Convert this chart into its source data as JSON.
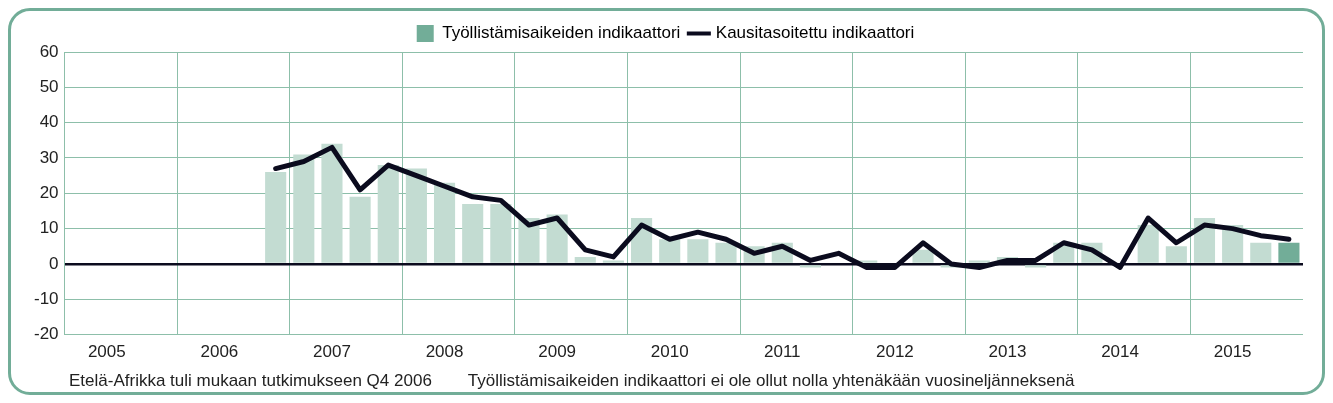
{
  "chart_data": {
    "type": "bar",
    "categories": [
      null,
      "2005",
      null,
      null,
      null,
      "2006",
      null,
      null,
      null,
      "2007",
      null,
      null,
      null,
      "2008",
      null,
      null,
      null,
      "2009",
      null,
      null,
      null,
      "2010",
      null,
      null,
      null,
      "2011",
      null,
      null,
      null,
      "2012",
      null,
      null,
      null,
      "2013",
      null,
      null,
      null,
      "2014",
      null,
      null,
      null,
      "2015",
      null,
      null
    ],
    "series": [
      {
        "name": "Työllistämisaikeiden indikaattori",
        "color": "#72ad98",
        "colors": [
          "#c3dcd2",
          "#c3dcd2",
          "#c3dcd2",
          "#c3dcd2",
          "#c3dcd2",
          "#c3dcd2",
          "#c3dcd2",
          "#c3dcd2",
          "#c3dcd2",
          "#c3dcd2",
          "#c3dcd2",
          "#c3dcd2",
          "#c3dcd2",
          "#c3dcd2",
          "#c3dcd2",
          "#c3dcd2",
          "#c3dcd2",
          "#c3dcd2",
          "#c3dcd2",
          "#c3dcd2",
          "#c3dcd2",
          "#c3dcd2",
          "#c3dcd2",
          "#c3dcd2",
          "#c3dcd2",
          "#c3dcd2",
          "#c3dcd2",
          "#c3dcd2",
          "#c3dcd2",
          "#c3dcd2",
          "#c3dcd2",
          "#c3dcd2",
          "#c3dcd2",
          "#c3dcd2",
          "#c3dcd2",
          "#c3dcd2",
          "#c3dcd2",
          "#c3dcd2",
          "#c3dcd2",
          "#c3dcd2",
          "#c3dcd2",
          "#c3dcd2",
          "#c3dcd2",
          "#72ad98"
        ],
        "values": [
          null,
          null,
          null,
          null,
          null,
          null,
          null,
          26,
          31,
          34,
          19,
          28,
          27,
          23,
          17,
          17,
          13,
          14,
          2,
          1,
          13,
          7,
          7,
          6,
          5,
          6,
          -1,
          null,
          1,
          null,
          4,
          -1,
          1,
          2,
          -1,
          6,
          6,
          null,
          11,
          5,
          13,
          11,
          6,
          6
        ]
      },
      {
        "name": "Kausitasoitettu indikaattori",
        "type": "line",
        "color": "#0b0b1e",
        "values": [
          null,
          null,
          null,
          null,
          null,
          null,
          null,
          27,
          29,
          33,
          21,
          28,
          25,
          22,
          19,
          18,
          11,
          13,
          4,
          2,
          11,
          7,
          9,
          7,
          3,
          5,
          1,
          3,
          -1,
          -1,
          6,
          0,
          -1,
          1,
          1,
          6,
          4,
          -1,
          13,
          6,
          11,
          10,
          8,
          7
        ]
      }
    ],
    "ylim": [
      -20,
      60
    ],
    "yticks": [
      -20,
      -10,
      0,
      10,
      20,
      30,
      40,
      50,
      60
    ],
    "grid": true,
    "legend": "top",
    "marker": "none",
    "line_style": "solid",
    "annotations": [
      "Etelä-Afrikka tuli mukaan tutkimukseen Q4 2006",
      "Työllistämisaikeiden indikaattori ei ole ollut nolla yhtenäkään vuosineljänneksenä"
    ]
  }
}
